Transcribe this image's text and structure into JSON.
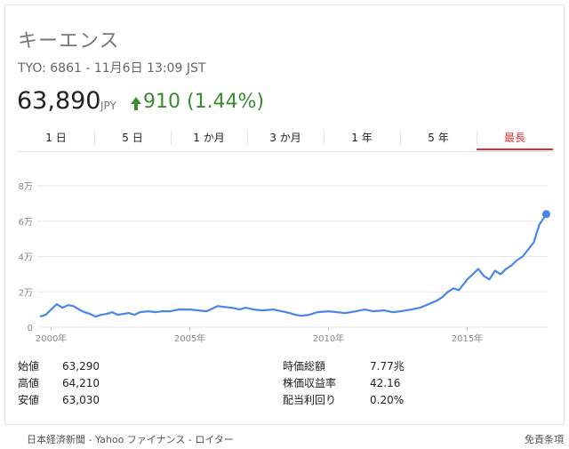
{
  "stock": {
    "name": "キーエンス",
    "subtitle": "TYO: 6861 - 11月6日 13:09 JST",
    "price": "63,890",
    "currency": "JPY",
    "change": "910 (1.44%)"
  },
  "tabs": [
    "1 日",
    "5 日",
    "1 か月",
    "3 か月",
    "1 年",
    "5 年",
    "最長"
  ],
  "active_tab": 6,
  "stats_left": [
    {
      "label": "始値",
      "value": "63,290"
    },
    {
      "label": "高値",
      "value": "64,210"
    },
    {
      "label": "安値",
      "value": "63,030"
    }
  ],
  "stats_right": [
    {
      "label": "時価総額",
      "value": "7.77兆"
    },
    {
      "label": "株価収益率",
      "value": "42.16"
    },
    {
      "label": "配当利回り",
      "value": "0.20%"
    }
  ],
  "footer": {
    "source": "日本経済新聞 - Yahoo ファイナンス - ロイター",
    "disclaimer": "免責条項"
  },
  "colors": {
    "line": "#4a86e8",
    "up": "#3a8c2f",
    "active_tab": "#dd3333"
  },
  "chart_data": {
    "type": "line",
    "ytick_labels": [
      "0",
      "2万",
      "4万",
      "6万",
      "8万"
    ],
    "yticks": [
      0,
      20000,
      40000,
      60000,
      80000
    ],
    "ylim": [
      0,
      80000
    ],
    "xtick_labels": [
      "2000年",
      "2005年",
      "2010年",
      "2015年"
    ],
    "xticks": [
      2000,
      2005,
      2010,
      2015
    ],
    "xlim": [
      1999.5,
      2017.9
    ],
    "grid": true,
    "series": [
      {
        "x": [
          1999.6,
          1999.8,
          2000.0,
          2000.2,
          2000.4,
          2000.6,
          2000.8,
          2001.0,
          2001.2,
          2001.4,
          2001.6,
          2001.8,
          2002.0,
          2002.2,
          2002.4,
          2002.6,
          2002.8,
          2003.0,
          2003.2,
          2003.5,
          2003.8,
          2004.0,
          2004.3,
          2004.6,
          2005.0,
          2005.3,
          2005.6,
          2006.0,
          2006.2,
          2006.5,
          2006.8,
          2007.0,
          2007.3,
          2007.6,
          2008.0,
          2008.3,
          2008.6,
          2008.8,
          2009.0,
          2009.3,
          2009.6,
          2010.0,
          2010.3,
          2010.6,
          2011.0,
          2011.3,
          2011.6,
          2012.0,
          2012.3,
          2012.6,
          2013.0,
          2013.3,
          2013.6,
          2013.9,
          2014.1,
          2014.3,
          2014.5,
          2014.7,
          2014.9,
          2015.0,
          2015.2,
          2015.4,
          2015.6,
          2015.8,
          2016.0,
          2016.2,
          2016.4,
          2016.6,
          2016.8,
          2017.0,
          2017.2,
          2017.4,
          2017.6,
          2017.85
        ],
        "y": [
          6000,
          7000,
          10000,
          13000,
          11000,
          12500,
          12000,
          10000,
          8500,
          7500,
          6000,
          7000,
          7500,
          8500,
          7000,
          7500,
          8000,
          7000,
          8500,
          9000,
          8500,
          9000,
          9000,
          10000,
          10000,
          9500,
          9000,
          12000,
          11500,
          11000,
          10000,
          11000,
          10000,
          9500,
          10000,
          9000,
          8000,
          7000,
          6500,
          7000,
          8500,
          9000,
          8500,
          8000,
          9000,
          10000,
          9000,
          9500,
          8500,
          9000,
          10000,
          11000,
          13000,
          15000,
          17000,
          20000,
          22000,
          21000,
          25000,
          27000,
          30000,
          33000,
          29000,
          27000,
          32000,
          30000,
          33000,
          35000,
          38000,
          40000,
          44000,
          48000,
          58000,
          64000
        ]
      }
    ]
  }
}
